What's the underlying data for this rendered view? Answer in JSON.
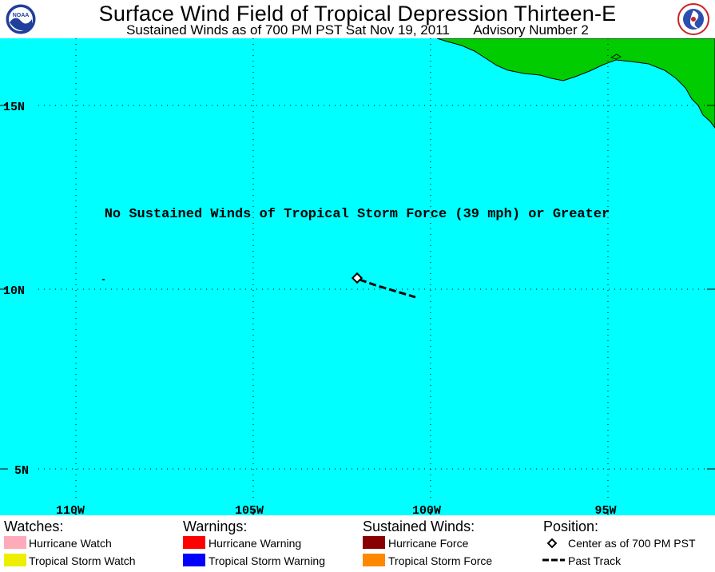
{
  "header": {
    "title": "Surface Wind Field of Tropical Depression Thirteen-E",
    "subtitle_time": "Sustained Winds as of 700 PM PST Sat Nov 19, 2011",
    "subtitle_advisory": "Advisory Number 2",
    "noaa_logo_text": "NOAA"
  },
  "map": {
    "notice": "No Sustained Winds of Tropical Storm Force (39 mph) or Greater",
    "lat_labels": [
      "15N",
      "10N",
      "5N"
    ],
    "lon_labels": [
      "110W",
      "105W",
      "100W",
      "95W"
    ],
    "colors": {
      "ocean": "#00ffff",
      "land": "#00cc00",
      "track": "#000000",
      "grid": "#000000"
    }
  },
  "legend": {
    "watches": {
      "heading": "Watches:",
      "items": [
        {
          "label": "Hurricane Watch",
          "color": "#ffaabb"
        },
        {
          "label": "Tropical Storm Watch",
          "color": "#eeee00"
        }
      ]
    },
    "warnings": {
      "heading": "Warnings:",
      "items": [
        {
          "label": "Hurricane Warning",
          "color": "#ff0000"
        },
        {
          "label": "Tropical Storm Warning",
          "color": "#0000ff"
        }
      ]
    },
    "winds": {
      "heading": "Sustained Winds:",
      "items": [
        {
          "label": "Hurricane Force",
          "color": "#880000"
        },
        {
          "label": "Tropical Storm Force",
          "color": "#ff8800"
        }
      ]
    },
    "position": {
      "heading": "Position:",
      "items": [
        {
          "label": "Center as of 700 PM PST",
          "icon": "diamond-icon"
        },
        {
          "label": "Past Track",
          "icon": "dashed-line-icon"
        }
      ]
    }
  }
}
